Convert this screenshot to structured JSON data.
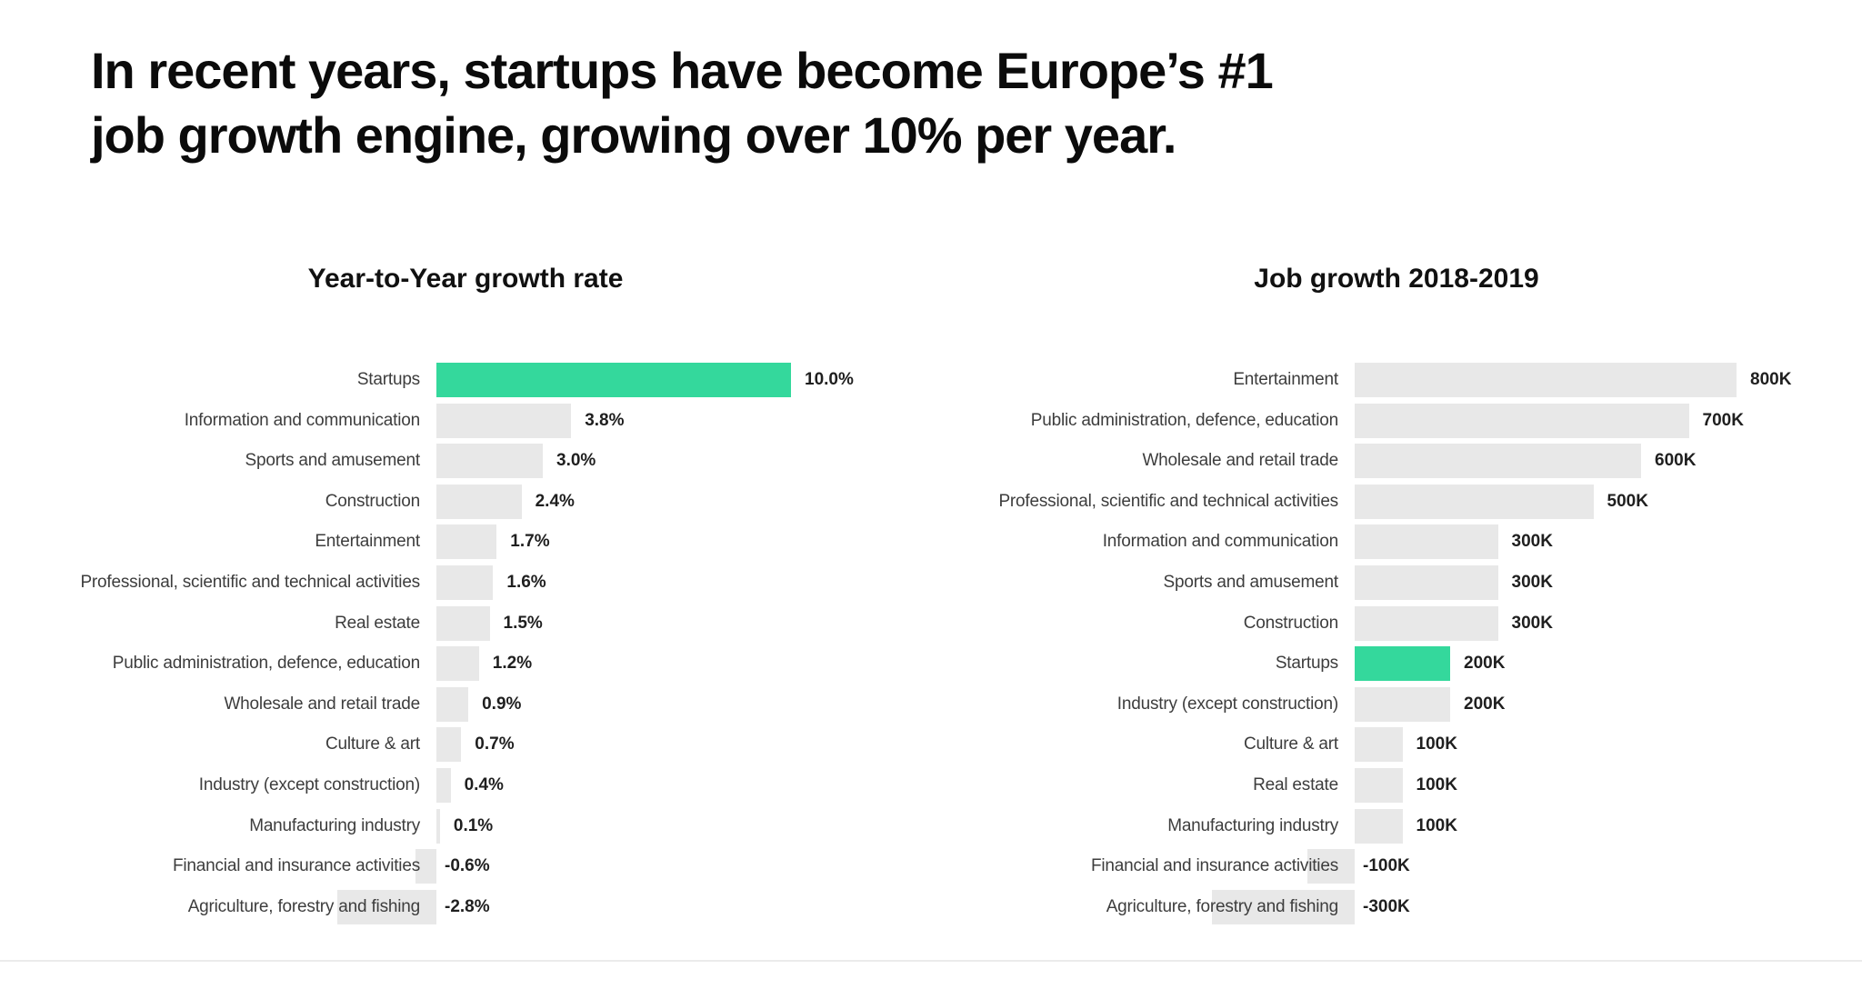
{
  "page": {
    "title_line1": "In recent years, startups have become Europe’s #1",
    "title_line2": "job growth engine, growing over 10% per year."
  },
  "colors": {
    "highlight_green": "#34d89c",
    "bar_grey": "#e8e8e8",
    "category_text": "#3d3d3d",
    "value_text": "#1f1f1f",
    "title_text": "#0b0b0b"
  },
  "chart_data": [
    {
      "type": "bar",
      "orientation": "horizontal",
      "title": "Year-to-Year growth rate",
      "unit": "percent",
      "xlim": [
        -3,
        10.5
      ],
      "grid": false,
      "legend": false,
      "highlight_category": "Startups",
      "categories": [
        "Startups",
        "Information and communication",
        "Sports and amusement",
        "Construction",
        "Entertainment",
        "Professional, scientific and technical activities",
        "Real estate",
        "Public administration, defence, education",
        "Wholesale and retail trade",
        "Culture & art",
        "Industry (except construction)",
        "Manufacturing industry",
        "Financial and insurance activities",
        "Agriculture, forestry and fishing"
      ],
      "values": [
        10.0,
        3.8,
        3.0,
        2.4,
        1.7,
        1.6,
        1.5,
        1.2,
        0.9,
        0.7,
        0.4,
        0.1,
        -0.6,
        -2.8
      ],
      "value_labels": [
        "10.0%",
        "3.8%",
        "3.0%",
        "2.4%",
        "1.7%",
        "1.6%",
        "1.5%",
        "1.2%",
        "0.9%",
        "0.7%",
        "0.4%",
        "0.1%",
        "-0.6%",
        "-2.8%"
      ]
    },
    {
      "type": "bar",
      "orientation": "horizontal",
      "title": "Job growth 2018-2019",
      "unit": "jobs (thousands)",
      "xlim": [
        -300,
        850
      ],
      "grid": false,
      "legend": false,
      "highlight_category": "Startups",
      "categories": [
        "Entertainment",
        "Public administration, defence, education",
        "Wholesale and retail trade",
        "Professional, scientific and technical activities",
        "Information and communication",
        "Sports and amusement",
        "Construction",
        "Startups",
        "Industry (except construction)",
        "Culture & art",
        "Real estate",
        "Manufacturing industry",
        "Financial and insurance activities",
        "Agriculture, forestry and fishing"
      ],
      "values": [
        800,
        700,
        600,
        500,
        300,
        300,
        300,
        200,
        200,
        100,
        100,
        100,
        -100,
        -300
      ],
      "value_labels": [
        "800K",
        "700K",
        "600K",
        "500K",
        "300K",
        "300K",
        "300K",
        "200K",
        "200K",
        "100K",
        "100K",
        "100K",
        "-100K",
        "-300K"
      ]
    }
  ]
}
